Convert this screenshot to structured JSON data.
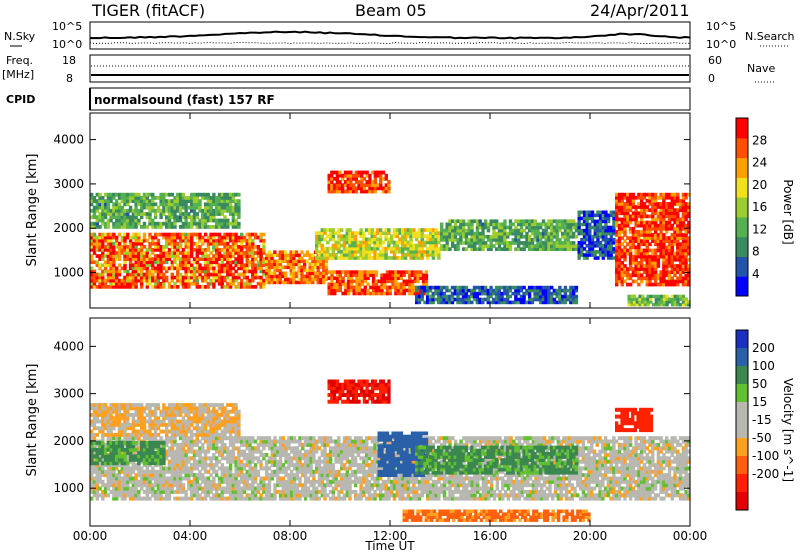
{
  "header": {
    "title": "TIGER (fitACF)",
    "beam": "Beam 05",
    "date": "24/Apr/2011"
  },
  "top_panels": {
    "noise": {
      "left_label": "N.Sky",
      "right_label": "N.Search",
      "left_ticks": [
        "10^5",
        "10^0"
      ],
      "right_ticks": [
        "10^5",
        "10^0"
      ]
    },
    "freq": {
      "left_label": "Freq.",
      "left_unit": "[MHz]",
      "right_label": "Nave",
      "left_ticks": [
        "18",
        "8"
      ],
      "right_ticks": [
        "60",
        "0"
      ]
    },
    "cpid": {
      "label": "CPID",
      "value": "normalsound (fast) 157 RF"
    }
  },
  "colors": {
    "power_scale": [
      "#0000ff",
      "#2255aa",
      "#3a8a60",
      "#55b050",
      "#9ccc30",
      "#f0e020",
      "#ffa000",
      "#ff5000",
      "#ff0000"
    ],
    "velocity_scale": [
      "#1a30c0",
      "#2a60a8",
      "#3a8850",
      "#60c030",
      "#b8b8b0",
      "#b8b8b0",
      "#ffa020",
      "#ff6010",
      "#ff2000",
      "#e00000"
    ]
  },
  "chart_data": [
    {
      "type": "heatmap",
      "name": "power",
      "ylabel": "Slant Range [km]",
      "yticks": [
        "1000",
        "2000",
        "3000",
        "4000"
      ],
      "ylim": [
        200,
        4600
      ],
      "colorbar_label": "Power [dB]",
      "colorbar_ticks": [
        "4",
        "8",
        "12",
        "16",
        "20",
        "24",
        "28"
      ],
      "colorbar_range": [
        0,
        32
      ],
      "regions": [
        {
          "t": [
            0.0,
            7.0
          ],
          "r": [
            650,
            1900
          ],
          "value": 28,
          "texture": "streaks"
        },
        {
          "t": [
            7.0,
            9.5
          ],
          "r": [
            750,
            1500
          ],
          "value": 25
        },
        {
          "t": [
            9.5,
            13.5
          ],
          "r": [
            500,
            1050
          ],
          "value": 27
        },
        {
          "t": [
            9.0,
            14.0
          ],
          "r": [
            1300,
            2000
          ],
          "value": 18
        },
        {
          "t": [
            14.0,
            19.5
          ],
          "r": [
            1500,
            2200
          ],
          "value": 12
        },
        {
          "t": [
            19.5,
            21.0
          ],
          "r": [
            1300,
            2400
          ],
          "value": 6
        },
        {
          "t": [
            21.0,
            24.0
          ],
          "r": [
            700,
            2800
          ],
          "value": 28
        },
        {
          "t": [
            0.0,
            6.0
          ],
          "r": [
            2000,
            2800
          ],
          "value": 12
        },
        {
          "t": [
            9.5,
            12.0
          ],
          "r": [
            2800,
            3300
          ],
          "value": 28
        },
        {
          "t": [
            13.0,
            19.5
          ],
          "r": [
            300,
            700
          ],
          "value": 6
        },
        {
          "t": [
            21.5,
            24.0
          ],
          "r": [
            250,
            500
          ],
          "value": 14
        }
      ]
    },
    {
      "type": "heatmap",
      "name": "velocity",
      "ylabel": "Slant Range [km]",
      "yticks": [
        "1000",
        "2000",
        "3000",
        "4000"
      ],
      "ylim": [
        200,
        4600
      ],
      "colorbar_label": "Velocity [m s^-1]",
      "colorbar_ticks": [
        "200",
        "100",
        "50",
        "15",
        "-15",
        "-50",
        "-100",
        "-200"
      ],
      "regions": [
        {
          "t": [
            0.0,
            24.0
          ],
          "r": [
            750,
            2100
          ],
          "value": 0
        },
        {
          "t": [
            0.0,
            3.0
          ],
          "r": [
            1500,
            2000
          ],
          "value": 60
        },
        {
          "t": [
            11.5,
            13.5
          ],
          "r": [
            1250,
            2200
          ],
          "value": 150
        },
        {
          "t": [
            13.0,
            19.5
          ],
          "r": [
            1300,
            1900
          ],
          "value": 60
        },
        {
          "t": [
            12.5,
            20.0
          ],
          "r": [
            300,
            550
          ],
          "value": -60
        },
        {
          "t": [
            9.5,
            12.0
          ],
          "r": [
            2800,
            3300
          ],
          "value": -200
        },
        {
          "t": [
            21.0,
            22.5
          ],
          "r": [
            2200,
            2700
          ],
          "value": -150
        },
        {
          "t": [
            0.0,
            6.0
          ],
          "r": [
            2100,
            2800
          ],
          "value": -15
        }
      ]
    }
  ],
  "x_axis": {
    "label": "Time UT",
    "ticks": [
      "00:00",
      "04:00",
      "08:00",
      "12:00",
      "16:00",
      "20:00",
      "00:00"
    ]
  }
}
